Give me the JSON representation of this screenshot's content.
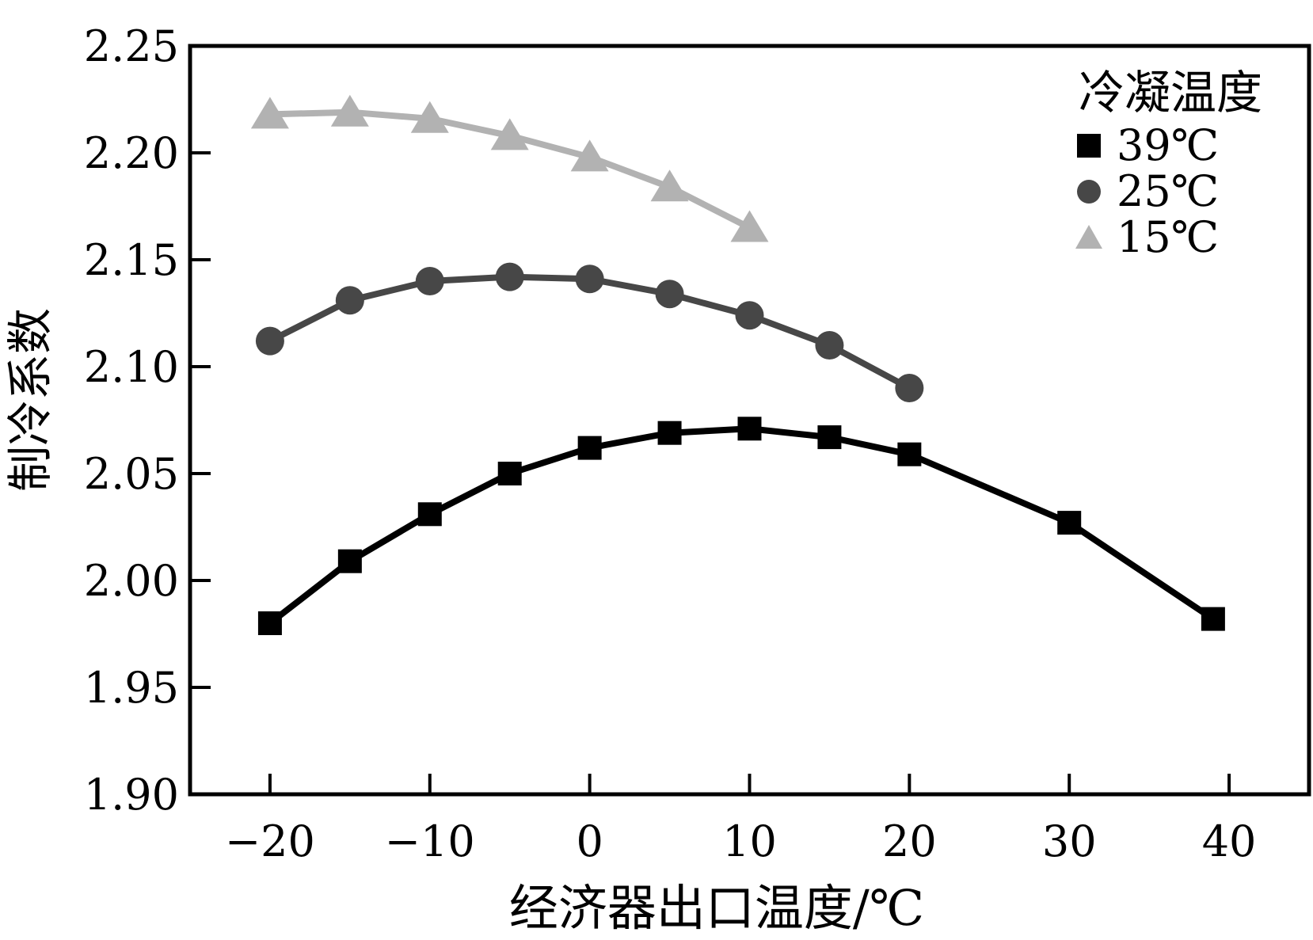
{
  "figure": {
    "background": "#ffffff"
  },
  "chart_data": {
    "type": "line",
    "title": "",
    "grid": false,
    "x_axis": {
      "label": "经济器出口温度/℃",
      "range": [
        -25,
        45
      ],
      "ticks": {
        "values": [
          -20,
          -10,
          0,
          10,
          20,
          30,
          40
        ],
        "labels": [
          "−20",
          "−10",
          "0",
          "10",
          "20",
          "30",
          "40"
        ]
      }
    },
    "y_axis": {
      "label": "制冷系数",
      "range": [
        1.9,
        2.25
      ],
      "ticks": {
        "values": [
          1.9,
          1.95,
          2.0,
          2.05,
          2.1,
          2.15,
          2.2,
          2.25
        ],
        "labels": [
          "1.90",
          "1.95",
          "2.00",
          "2.05",
          "2.10",
          "2.15",
          "2.20",
          "2.25"
        ]
      }
    },
    "legend": {
      "title": "冷凝温度",
      "position": "top-right"
    },
    "series": [
      {
        "name": "39℃",
        "marker": "square",
        "color": "#000000",
        "points": [
          [
            -20,
            1.98
          ],
          [
            -15,
            2.009
          ],
          [
            -10,
            2.031
          ],
          [
            -5,
            2.05
          ],
          [
            0,
            2.062
          ],
          [
            5,
            2.069
          ],
          [
            10,
            2.071
          ],
          [
            15,
            2.067
          ],
          [
            20,
            2.059
          ],
          [
            30,
            2.027
          ],
          [
            39,
            1.982
          ]
        ]
      },
      {
        "name": "25℃",
        "marker": "circle",
        "color": "#474747",
        "points": [
          [
            -20,
            2.112
          ],
          [
            -15,
            2.131
          ],
          [
            -10,
            2.14
          ],
          [
            -5,
            2.142
          ],
          [
            0,
            2.141
          ],
          [
            5,
            2.134
          ],
          [
            10,
            2.124
          ],
          [
            15,
            2.11
          ],
          [
            20,
            2.09
          ]
        ]
      },
      {
        "name": "15℃",
        "marker": "triangle",
        "color": "#b2b2b2",
        "points": [
          [
            -20,
            2.218
          ],
          [
            -15,
            2.219
          ],
          [
            -10,
            2.216
          ],
          [
            -5,
            2.208
          ],
          [
            0,
            2.198
          ],
          [
            5,
            2.184
          ],
          [
            10,
            2.165
          ]
        ]
      }
    ]
  }
}
